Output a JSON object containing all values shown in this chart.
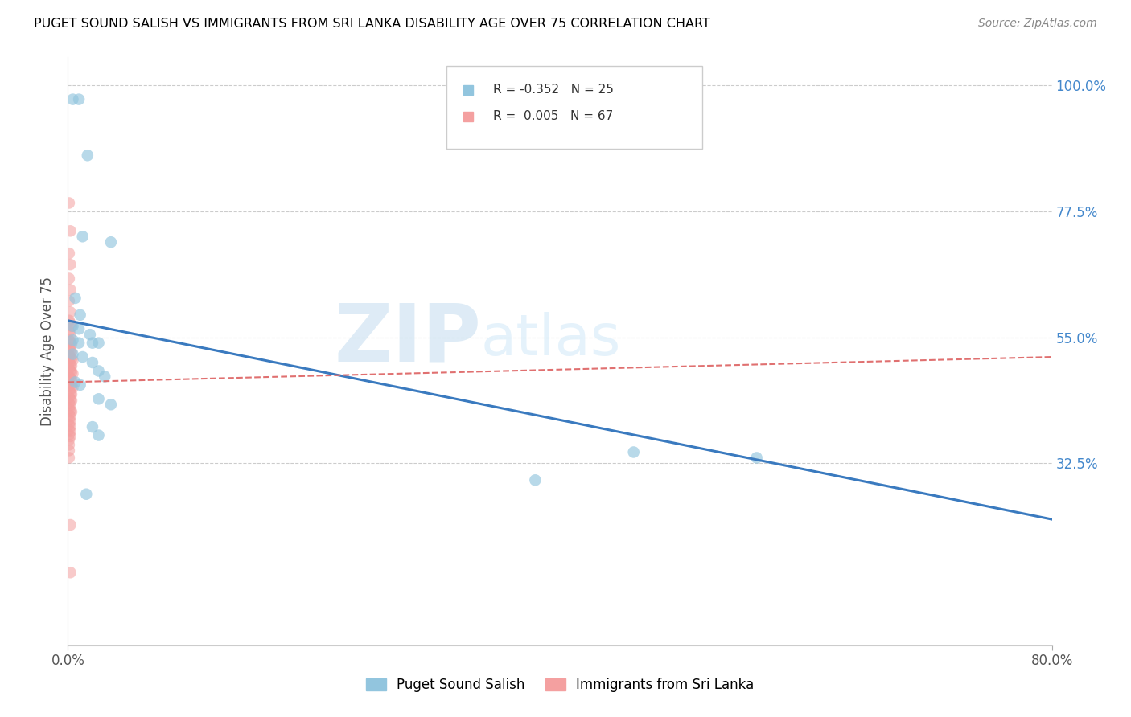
{
  "title": "PUGET SOUND SALISH VS IMMIGRANTS FROM SRI LANKA DISABILITY AGE OVER 75 CORRELATION CHART",
  "source": "Source: ZipAtlas.com",
  "ylabel": "Disability Age Over 75",
  "yticks": [
    0.0,
    0.325,
    0.55,
    0.775,
    1.0
  ],
  "ytick_labels": [
    "",
    "32.5%",
    "55.0%",
    "77.5%",
    "100.0%"
  ],
  "legend_bottom1": "Puget Sound Salish",
  "legend_bottom2": "Immigrants from Sri Lanka",
  "blue_color": "#92c5de",
  "pink_color": "#f4a0a0",
  "blue_line_color": "#3a7abf",
  "pink_line_color": "#e07070",
  "watermark_zip": "ZIP",
  "watermark_atlas": "atlas",
  "blue_points": [
    [
      0.004,
      0.975
    ],
    [
      0.009,
      0.975
    ],
    [
      0.016,
      0.875
    ],
    [
      0.012,
      0.73
    ],
    [
      0.035,
      0.72
    ],
    [
      0.006,
      0.62
    ],
    [
      0.01,
      0.59
    ],
    [
      0.004,
      0.57
    ],
    [
      0.009,
      0.565
    ],
    [
      0.018,
      0.555
    ],
    [
      0.004,
      0.545
    ],
    [
      0.009,
      0.54
    ],
    [
      0.02,
      0.54
    ],
    [
      0.025,
      0.54
    ],
    [
      0.004,
      0.52
    ],
    [
      0.012,
      0.515
    ],
    [
      0.02,
      0.505
    ],
    [
      0.025,
      0.49
    ],
    [
      0.03,
      0.48
    ],
    [
      0.006,
      0.47
    ],
    [
      0.01,
      0.465
    ],
    [
      0.025,
      0.44
    ],
    [
      0.035,
      0.43
    ],
    [
      0.02,
      0.39
    ],
    [
      0.025,
      0.375
    ],
    [
      0.46,
      0.345
    ],
    [
      0.56,
      0.335
    ],
    [
      0.38,
      0.295
    ],
    [
      0.015,
      0.27
    ]
  ],
  "pink_points": [
    [
      0.001,
      0.79
    ],
    [
      0.002,
      0.74
    ],
    [
      0.001,
      0.7
    ],
    [
      0.002,
      0.68
    ],
    [
      0.001,
      0.655
    ],
    [
      0.002,
      0.635
    ],
    [
      0.001,
      0.615
    ],
    [
      0.002,
      0.595
    ],
    [
      0.001,
      0.58
    ],
    [
      0.002,
      0.575
    ],
    [
      0.003,
      0.57
    ],
    [
      0.001,
      0.56
    ],
    [
      0.002,
      0.555
    ],
    [
      0.001,
      0.545
    ],
    [
      0.002,
      0.542
    ],
    [
      0.003,
      0.538
    ],
    [
      0.001,
      0.53
    ],
    [
      0.002,
      0.527
    ],
    [
      0.003,
      0.524
    ],
    [
      0.001,
      0.518
    ],
    [
      0.002,
      0.515
    ],
    [
      0.003,
      0.512
    ],
    [
      0.004,
      0.509
    ],
    [
      0.001,
      0.505
    ],
    [
      0.002,
      0.502
    ],
    [
      0.003,
      0.499
    ],
    [
      0.001,
      0.494
    ],
    [
      0.002,
      0.491
    ],
    [
      0.003,
      0.488
    ],
    [
      0.004,
      0.485
    ],
    [
      0.001,
      0.48
    ],
    [
      0.002,
      0.477
    ],
    [
      0.003,
      0.474
    ],
    [
      0.001,
      0.469
    ],
    [
      0.002,
      0.466
    ],
    [
      0.003,
      0.463
    ],
    [
      0.004,
      0.46
    ],
    [
      0.001,
      0.454
    ],
    [
      0.002,
      0.451
    ],
    [
      0.003,
      0.448
    ],
    [
      0.001,
      0.443
    ],
    [
      0.002,
      0.44
    ],
    [
      0.003,
      0.437
    ],
    [
      0.001,
      0.432
    ],
    [
      0.002,
      0.429
    ],
    [
      0.001,
      0.423
    ],
    [
      0.002,
      0.42
    ],
    [
      0.003,
      0.417
    ],
    [
      0.001,
      0.412
    ],
    [
      0.002,
      0.409
    ],
    [
      0.001,
      0.403
    ],
    [
      0.002,
      0.4
    ],
    [
      0.001,
      0.394
    ],
    [
      0.002,
      0.391
    ],
    [
      0.001,
      0.385
    ],
    [
      0.002,
      0.382
    ],
    [
      0.001,
      0.376
    ],
    [
      0.002,
      0.373
    ],
    [
      0.001,
      0.367
    ],
    [
      0.001,
      0.358
    ],
    [
      0.001,
      0.348
    ],
    [
      0.001,
      0.335
    ],
    [
      0.002,
      0.215
    ],
    [
      0.002,
      0.13
    ]
  ],
  "blue_line": [
    [
      0.0,
      0.58
    ],
    [
      0.8,
      0.225
    ]
  ],
  "pink_line": [
    [
      0.0,
      0.47
    ],
    [
      0.8,
      0.515
    ]
  ],
  "xmin": 0.0,
  "xmax": 0.8,
  "ymin": 0.0,
  "ymax": 1.05
}
